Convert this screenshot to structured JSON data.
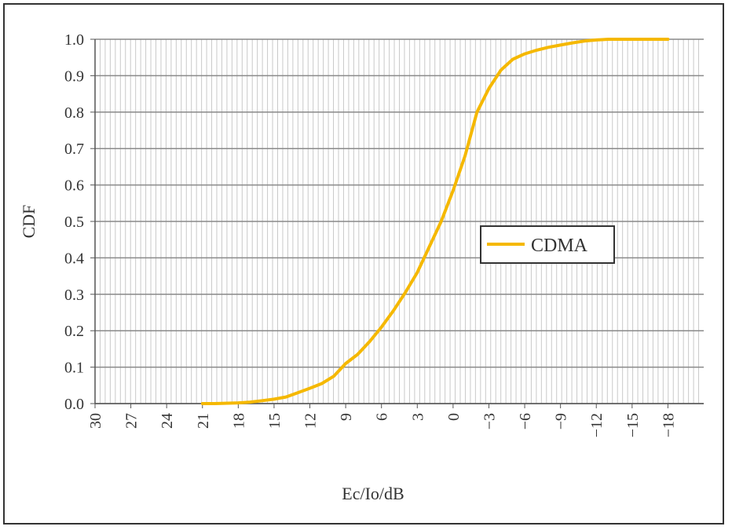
{
  "chart_data": {
    "type": "line",
    "title": "",
    "xlabel": "Ec/Io/dB",
    "ylabel": "CDF",
    "x_reversed": true,
    "xlim": [
      30,
      -21
    ],
    "ylim": [
      0,
      1
    ],
    "x_ticks": [
      "30",
      "27",
      "24",
      "21",
      "18",
      "15",
      "12",
      "9",
      "6",
      "3",
      "0",
      "−3",
      "−6",
      "−9",
      "−12",
      "−15",
      "−18"
    ],
    "x_tick_values": [
      30,
      27,
      24,
      21,
      18,
      15,
      12,
      9,
      6,
      3,
      0,
      -3,
      -6,
      -9,
      -12,
      -15,
      -18
    ],
    "y_ticks": [
      "0.0",
      "0.1",
      "0.2",
      "0.3",
      "0.4",
      "0.5",
      "0.6",
      "0.7",
      "0.8",
      "0.9",
      "1.0"
    ],
    "y_tick_values": [
      0,
      0.1,
      0.2,
      0.3,
      0.4,
      0.5,
      0.6,
      0.7,
      0.8,
      0.9,
      1.0
    ],
    "grid": true,
    "legend_position": "right-middle",
    "series": [
      {
        "name": "CDMA",
        "color": "#f5b800",
        "x": [
          21,
          20,
          18,
          17,
          16,
          15,
          14,
          13,
          12,
          11,
          10,
          9,
          8,
          7,
          6,
          5,
          4,
          3,
          2,
          1,
          0,
          -1,
          -2,
          -3,
          -4,
          -5,
          -6,
          -7,
          -8,
          -9,
          -10,
          -11,
          -12,
          -13,
          -15,
          -17,
          -18
        ],
        "y": [
          0.0,
          0.0,
          0.002,
          0.004,
          0.008,
          0.012,
          0.018,
          0.03,
          0.042,
          0.055,
          0.075,
          0.11,
          0.135,
          0.17,
          0.21,
          0.255,
          0.305,
          0.36,
          0.43,
          0.5,
          0.585,
          0.68,
          0.8,
          0.865,
          0.915,
          0.945,
          0.96,
          0.97,
          0.978,
          0.984,
          0.99,
          0.995,
          0.998,
          1.0,
          1.0,
          1.0,
          1.0
        ]
      }
    ]
  }
}
